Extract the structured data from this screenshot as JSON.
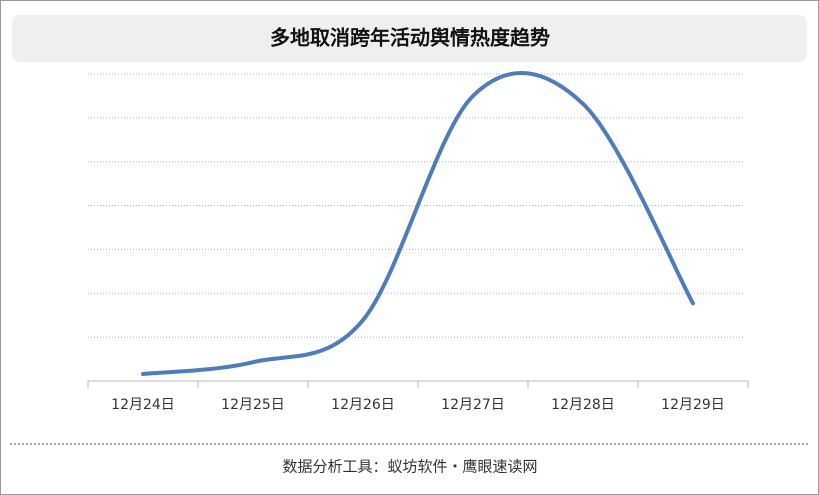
{
  "chart_data": {
    "type": "line",
    "title": "多地取消跨年活动舆情热度趋势",
    "categories": [
      "12月24日",
      "12月25日",
      "12月26日",
      "12月27日",
      "12月28日",
      "12月29日"
    ],
    "values": [
      1.6,
      4.3,
      13.9,
      65,
      63.2,
      17.7
    ],
    "color": "#4f7dba",
    "ylim": [
      0,
      70
    ],
    "yticks": [
      10,
      20,
      30,
      40,
      50,
      60,
      70
    ],
    "grid": true,
    "source": "数据分析工具：蚁坊软件・鹰眼速读网"
  }
}
